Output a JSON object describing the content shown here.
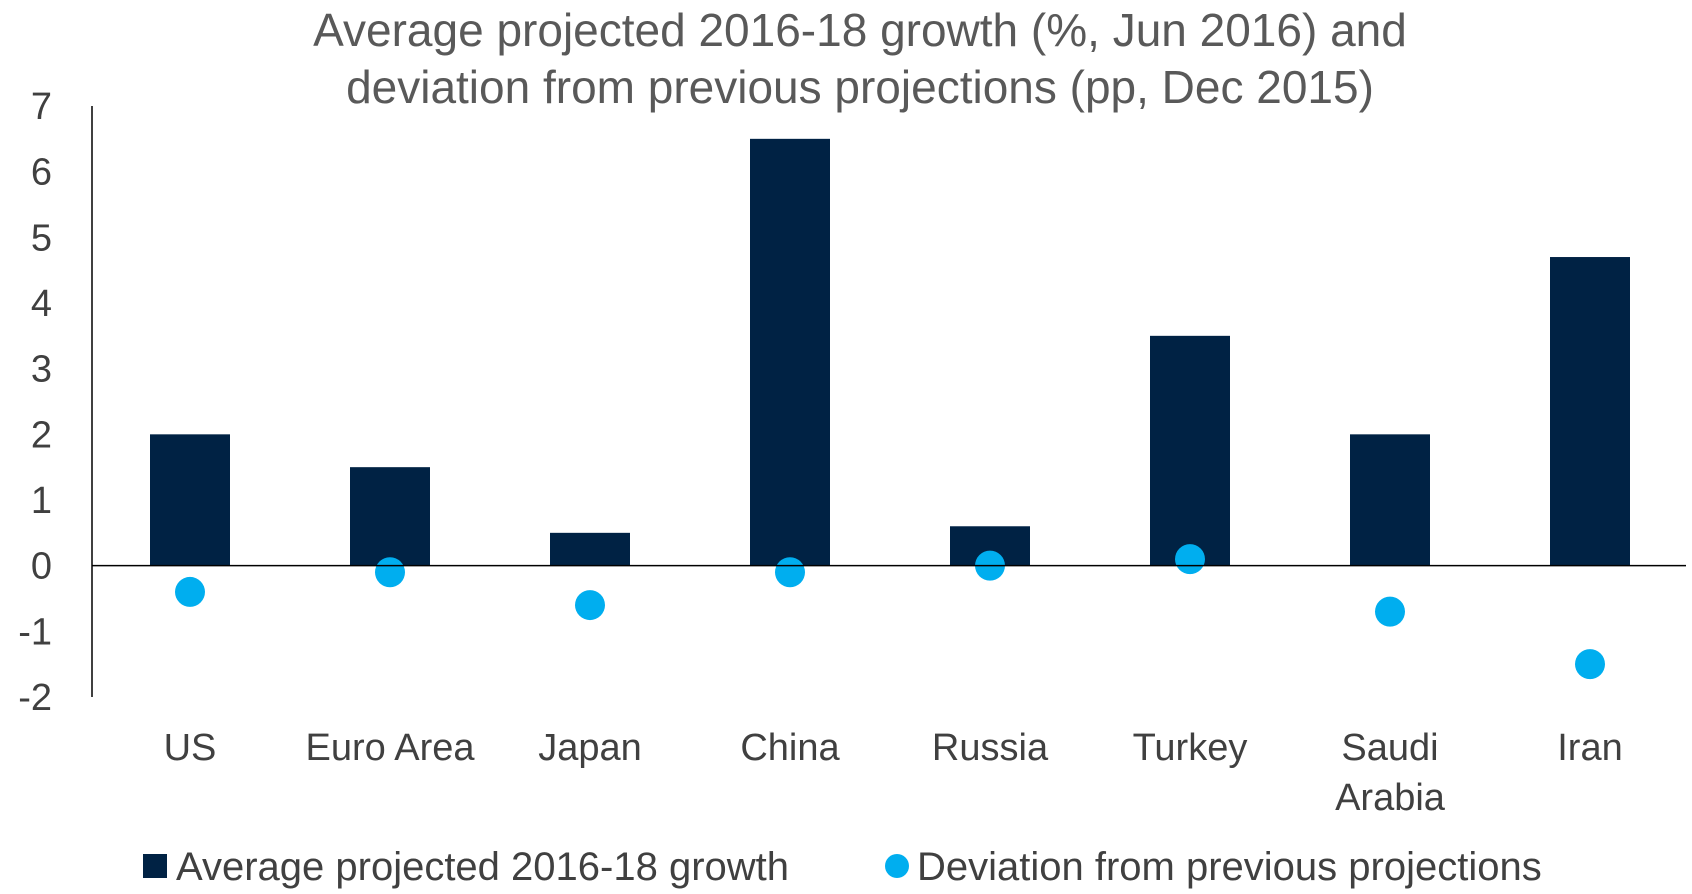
{
  "chart_data": {
    "type": "bar",
    "title": [
      "Average projected 2016-18 growth (%, Jun 2016) and",
      "deviation from previous projections (pp, Dec 2015)"
    ],
    "categories": [
      [
        "US"
      ],
      [
        "Euro Area"
      ],
      [
        "Japan"
      ],
      [
        "China"
      ],
      [
        "Russia"
      ],
      [
        "Turkey"
      ],
      [
        "Saudi",
        "Arabia"
      ],
      [
        "Iran"
      ]
    ],
    "series": [
      {
        "name": "Average projected 2016-18 growth",
        "type": "bar",
        "color": "#002244",
        "values": [
          2.0,
          1.5,
          0.5,
          6.5,
          0.6,
          3.5,
          2.0,
          4.7
        ]
      },
      {
        "name": "Deviation from previous projections",
        "type": "scatter",
        "color": "#00AEEF",
        "values": [
          -0.4,
          -0.1,
          -0.6,
          -0.1,
          0.0,
          0.1,
          -0.7,
          -1.5
        ]
      }
    ],
    "ylim": [
      -2,
      7
    ],
    "yticks": [
      "7",
      "6",
      "5",
      "4",
      "3",
      "2",
      "1",
      "0",
      "-1",
      "-2"
    ],
    "ytick_values": [
      7,
      6,
      5,
      4,
      3,
      2,
      1,
      0,
      -1,
      -2
    ],
    "grid": false,
    "legend_position": "bottom"
  }
}
